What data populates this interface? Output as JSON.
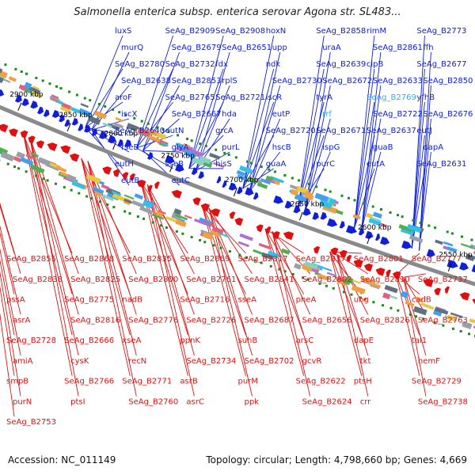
{
  "title": "Salmonella enterica subsp. enterica serovar Agona str. SL483...",
  "footer": {
    "accession": "Accession: NC_011149",
    "summary": "Topology: circular; Length: 4,798,660 bp; Genes: 4,669"
  },
  "colors": {
    "forward_strand": "#1020d8",
    "reverse_strand": "#e01010",
    "backbone": "#8a8a8a",
    "highlight_label": "#33aaee",
    "gc_skew": "#1a8a1a"
  },
  "ticks": [
    {
      "label": "2900 kbp"
    },
    {
      "label": "2850 kbp"
    },
    {
      "label": "2800 kbp"
    },
    {
      "label": "2750 kbp"
    },
    {
      "label": "2700 kbp"
    },
    {
      "label": "2650 kbp"
    },
    {
      "label": "2600 kbp"
    },
    {
      "label": "2550 kbp"
    }
  ],
  "forward_labels": [
    "luxS",
    "SeAg_B2909",
    "SeAg_B2908",
    "hoxN",
    "SeAg_B2858",
    "rimM",
    "SeAg_B2773",
    "murQ",
    "SeAg_B2679",
    "SeAg_B2651",
    "upp",
    "uraA",
    "SeAg_B2861",
    "ffh",
    "SeAg_B2780",
    "SeAg_B2732",
    "fdx",
    "ndk",
    "SeAg_B2639",
    "clpB",
    "SeAg_B2677",
    "SeAg_B2638",
    "SeAg_B2853",
    "rplS",
    "SeAg_B2730",
    "SeAg_B2672",
    "SeAg_B2633",
    "SeAg_B2850",
    "aroF",
    "SeAg_B2765",
    "SeAg_B2721",
    "iscR",
    "tyrA",
    "SeAg_B2769",
    "yfhB",
    "iscX",
    "SeAg_B2667",
    "hda",
    "eutP",
    "rrf",
    "SeAg_B2722",
    "SeAg_B2676",
    "SeAg_B2640",
    "eutN",
    "grcA",
    "SeAg_B2720",
    "SeAg_B2671",
    "SeAg_B2637",
    "eutJ",
    "rseB",
    "glyA",
    "purL",
    "hscB",
    "ispG",
    "guaB",
    "dapA",
    "eutH",
    "sseB",
    "hisS",
    "guaA",
    "purC",
    "eutA",
    "SeAg_B2631",
    "eutB",
    "eutC"
  ],
  "reverse_labels": [
    "SeAg_B2855",
    "SeAg_B2868",
    "SeAg_B2835",
    "SeAg_B2869",
    "SeAg_B2817",
    "SeAg_B2837",
    "SeAg_B2801",
    "SeAg_B2777",
    "SeAg_B2838",
    "SeAg_B2825",
    "SeAg_B2800",
    "SeAg_B2761",
    "SeAg_B2841",
    "SeAg_B2802",
    "SeAg_B2810",
    "SeAg_B2737",
    "pssA",
    "SeAg_B2775",
    "nadB",
    "SeAg_B2716",
    "sseA",
    "pheA",
    "ung",
    "cadB",
    "asrA",
    "SeAg_B2816",
    "SeAg_B2776",
    "SeAg_B2726",
    "SeAg_B2687",
    "SeAg_B2656",
    "SeAg_B2826",
    "SeAg_B2763",
    "SeAg_B2728",
    "SeAg_B2666",
    "xseA",
    "ppnK",
    "suhB",
    "arsC",
    "dapE",
    "tal1",
    "amiA",
    "cysK",
    "recN",
    "SeAg_B2734",
    "SeAg_B2702",
    "gcvR",
    "tkt",
    "hemF",
    "smpB",
    "SeAg_B2766",
    "SeAg_B2771",
    "asrB",
    "purM",
    "SeAg_B2622",
    "ptsH",
    "SeAg_B2729",
    "purN",
    "ptsI",
    "SeAg_B2760",
    "asrC",
    "ppk",
    "SeAg_B2624",
    "crr",
    "SeAg_B2738",
    "SeAg_B2753"
  ]
}
